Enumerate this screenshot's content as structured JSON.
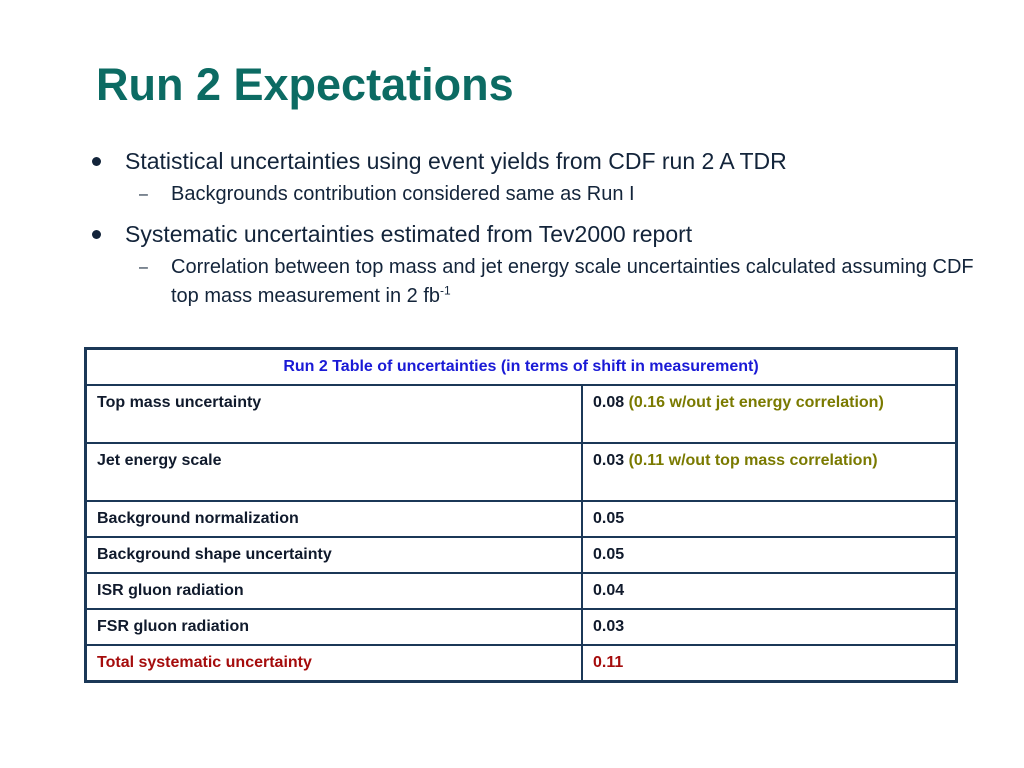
{
  "slide": {
    "title": "Run 2 Expectations"
  },
  "bullets": [
    {
      "text": "Statistical uncertainties using event yields from CDF run 2 A TDR",
      "subs": [
        {
          "text": "Backgrounds contribution considered same as Run I"
        }
      ]
    },
    {
      "text": "Systematic uncertainties estimated from Tev2000 report",
      "subs": [
        {
          "text": "Correlation between top mass and jet energy scale uncertainties calculated assuming CDF top mass measurement in 2 fb",
          "sup": "-1"
        }
      ]
    }
  ],
  "table": {
    "header": "Run 2 Table of uncertainties   (in terms of shift in measurement)",
    "rows": [
      {
        "label": "Top mass uncertainty",
        "value": "0.08",
        "note": "(0.16 w/out  jet energy correlation)"
      },
      {
        "label": "Jet energy scale",
        "value": "0.03",
        "note": "(0.11 w/out  top mass correlation)"
      },
      {
        "label": "Background normalization",
        "value": "0.05"
      },
      {
        "label": "Background shape uncertainty",
        "value": "0.05"
      },
      {
        "label": "ISR gluon radiation",
        "value": "0.04"
      },
      {
        "label": "FSR gluon radiation",
        "value": "0.03"
      },
      {
        "label": "Total systematic uncertainty",
        "value": "0.11"
      }
    ]
  },
  "colors": {
    "title": "#0c6b63",
    "table_header": "#1a1ad6",
    "note": "#7a7a00",
    "total": "#a50c0c",
    "border": "#1b3857"
  }
}
